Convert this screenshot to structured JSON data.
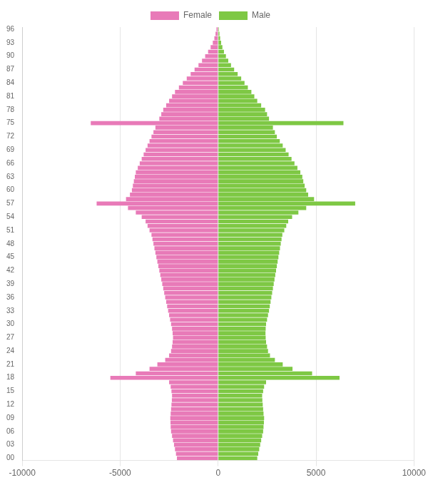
{
  "chart_data": {
    "type": "bar",
    "orientation": "horizontal",
    "grid": true,
    "legend": "top",
    "xlim": [
      -10000,
      10000
    ],
    "xticks": [
      -10000,
      -5000,
      0,
      5000,
      10000
    ],
    "categories": [
      "00",
      null,
      null,
      "03",
      null,
      null,
      "06",
      null,
      null,
      "09",
      null,
      null,
      "12",
      null,
      null,
      "15",
      null,
      null,
      "18",
      null,
      null,
      "21",
      null,
      null,
      "24",
      null,
      null,
      "27",
      null,
      null,
      "30",
      null,
      null,
      "33",
      null,
      null,
      "36",
      null,
      null,
      "39",
      null,
      null,
      "42",
      null,
      null,
      "45",
      null,
      null,
      "48",
      null,
      null,
      "51",
      null,
      null,
      "54",
      null,
      null,
      "57",
      null,
      null,
      "60",
      null,
      null,
      "63",
      null,
      null,
      "66",
      null,
      null,
      "69",
      null,
      null,
      "72",
      null,
      null,
      "75",
      null,
      null,
      "78",
      null,
      null,
      "81",
      null,
      null,
      "84",
      null,
      null,
      "87",
      null,
      null,
      "90",
      null,
      null,
      "93",
      null,
      null,
      "96"
    ],
    "series": [
      {
        "name": "Female",
        "color": "#e87ab8",
        "values": [
          -2100,
          -2150,
          -2200,
          -2250,
          -2300,
          -2350,
          -2400,
          -2420,
          -2430,
          -2440,
          -2420,
          -2400,
          -2380,
          -2360,
          -2350,
          -2380,
          -2420,
          -2500,
          -5500,
          -4200,
          -3500,
          -3100,
          -2700,
          -2500,
          -2400,
          -2350,
          -2320,
          -2300,
          -2320,
          -2350,
          -2400,
          -2450,
          -2500,
          -2550,
          -2600,
          -2650,
          -2700,
          -2750,
          -2800,
          -2850,
          -2900,
          -2950,
          -3000,
          -3050,
          -3100,
          -3150,
          -3200,
          -3250,
          -3300,
          -3350,
          -3400,
          -3500,
          -3600,
          -3700,
          -3900,
          -4200,
          -4600,
          -6200,
          -4700,
          -4500,
          -4400,
          -4350,
          -4300,
          -4250,
          -4200,
          -4100,
          -4000,
          -3900,
          -3800,
          -3700,
          -3600,
          -3500,
          -3400,
          -3300,
          -3200,
          -6500,
          -3000,
          -2900,
          -2800,
          -2650,
          -2500,
          -2350,
          -2200,
          -2000,
          -1800,
          -1600,
          -1400,
          -1200,
          -1000,
          -820,
          -660,
          -510,
          -380,
          -270,
          -190,
          -130,
          -80
        ]
      },
      {
        "name": "Male",
        "color": "#7ec844",
        "values": [
          2000,
          2050,
          2100,
          2150,
          2200,
          2250,
          2300,
          2320,
          2340,
          2350,
          2320,
          2300,
          2280,
          2260,
          2250,
          2300,
          2350,
          2450,
          6200,
          4800,
          3800,
          3300,
          2900,
          2650,
          2550,
          2500,
          2450,
          2430,
          2420,
          2430,
          2450,
          2500,
          2550,
          2600,
          2640,
          2680,
          2720,
          2760,
          2800,
          2840,
          2880,
          2920,
          2960,
          3000,
          3040,
          3080,
          3120,
          3160,
          3200,
          3240,
          3280,
          3380,
          3480,
          3580,
          3780,
          4100,
          4500,
          7000,
          4900,
          4600,
          4500,
          4420,
          4350,
          4300,
          4200,
          4050,
          3900,
          3750,
          3600,
          3450,
          3300,
          3150,
          3000,
          2900,
          2800,
          6400,
          2600,
          2500,
          2400,
          2200,
          2000,
          1850,
          1700,
          1520,
          1350,
          1180,
          1000,
          820,
          660,
          520,
          400,
          300,
          220,
          155,
          105,
          70,
          42
        ]
      }
    ]
  }
}
